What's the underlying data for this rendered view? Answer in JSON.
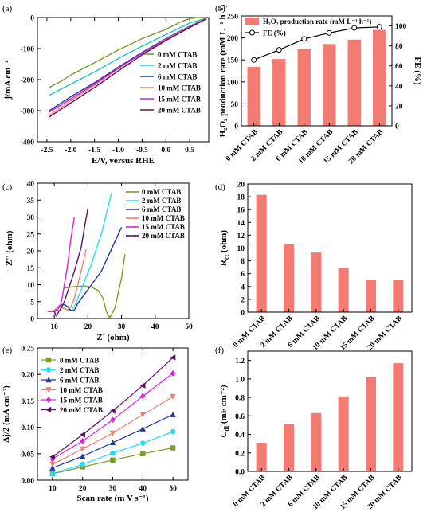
{
  "chart_data": [
    {
      "panel": "(a)",
      "type": "line",
      "xlabel": "E/V, versus RHE",
      "ylabel": "j/mA cm⁻²",
      "xlim": [
        -2.7,
        0.9
      ],
      "ylim": [
        -400,
        0
      ],
      "xticks": [
        -2.5,
        -2.0,
        -1.5,
        -1.0,
        -0.5,
        0.0,
        0.5
      ],
      "xtick_labels": [
        "-2.5",
        "-2.0",
        "-1.5",
        "-1.0",
        "-0.5",
        "0.0",
        "0.5"
      ],
      "yticks": [
        -400,
        -300,
        -200,
        -100,
        0
      ],
      "ytick_labels": [
        "-400",
        "-300",
        "-200",
        "-100",
        "0"
      ],
      "legend_position": "right",
      "series": [
        {
          "name": "0 mM CTAB",
          "color": "#7c9c28",
          "x": [
            -2.45,
            -2.2,
            -2.0,
            -1.5,
            -1.0,
            -0.5,
            0.0,
            0.3,
            0.5,
            0.7,
            0.85
          ],
          "y": [
            -225,
            -205,
            -185,
            -145,
            -105,
            -68,
            -38,
            -15,
            -3,
            0,
            0
          ]
        },
        {
          "name": "2 mM CTAB",
          "color": "#20c0c8",
          "x": [
            -2.45,
            -2.0,
            -1.5,
            -1.0,
            -0.5,
            0.0,
            0.5,
            0.85
          ],
          "y": [
            -250,
            -215,
            -175,
            -132,
            -92,
            -55,
            -18,
            -2
          ]
        },
        {
          "name": "6 mM CTAB",
          "color": "#1f3aa0",
          "x": [
            -2.45,
            -2.0,
            -1.5,
            -1.0,
            -0.5,
            0.0,
            0.5,
            0.85
          ],
          "y": [
            -300,
            -255,
            -210,
            -160,
            -112,
            -68,
            -28,
            -3
          ]
        },
        {
          "name": "10 mM CTAB",
          "color": "#f08070",
          "x": [
            -2.45,
            -2.0,
            -1.5,
            -1.0,
            -0.5,
            0.0,
            0.5,
            0.85
          ],
          "y": [
            -315,
            -268,
            -218,
            -165,
            -115,
            -70,
            -30,
            -3
          ]
        },
        {
          "name": "15 mM CTAB",
          "color": "#d020c8",
          "x": [
            -2.45,
            -2.0,
            -1.5,
            -1.0,
            -0.5,
            0.0,
            0.5,
            0.85
          ],
          "y": [
            -305,
            -262,
            -214,
            -163,
            -115,
            -72,
            -32,
            -4
          ]
        },
        {
          "name": "20 mM CTAB",
          "color": "#601060",
          "x": [
            -2.45,
            -2.0,
            -1.5,
            -1.0,
            -0.5,
            0.0,
            0.5,
            0.85
          ],
          "y": [
            -320,
            -275,
            -225,
            -172,
            -120,
            -74,
            -32,
            -4
          ]
        }
      ]
    },
    {
      "panel": "(b)",
      "type": "bar",
      "categories": [
        "0 mM CTAB",
        "2 mM CTAB",
        "6 mM CTAB",
        "10 mM CTAB",
        "15 mM CTAB",
        "20 mM CTAB"
      ],
      "ylabel_left": "H₂O₂ production rate (mM L⁻¹ h⁻¹)",
      "ylabel_right": "FE (%)",
      "ylim_left": [
        0,
        250
      ],
      "yticks_left": [
        0,
        50,
        100,
        150,
        200,
        250
      ],
      "ytick_labels_left": [
        "0",
        "50",
        "100",
        "150",
        "200",
        "250"
      ],
      "ylim_right": [
        0,
        110
      ],
      "yticks_right": [
        0,
        20,
        40,
        60,
        80,
        100
      ],
      "ytick_labels_right": [
        "0",
        "20",
        "40",
        "60",
        "80",
        "100"
      ],
      "legend_position": "top-left",
      "series": [
        {
          "name": "H₂O₂ production rate (mM L⁻¹ h⁻¹)",
          "kind": "bar",
          "color": "#f47b72",
          "values": [
            134,
            152,
            174,
            186,
            196,
            218
          ]
        },
        {
          "name": "FE (%)",
          "kind": "line",
          "color": "#000000",
          "values": [
            66,
            76,
            87,
            93,
            98,
            99
          ]
        }
      ]
    },
    {
      "panel": "(c)",
      "type": "line",
      "xlabel": "Z' (ohm)",
      "ylabel": "- Z'' (ohm)",
      "xlim": [
        5,
        50
      ],
      "ylim": [
        0,
        40
      ],
      "xticks": [
        10,
        20,
        30,
        40,
        50
      ],
      "xtick_labels": [
        "10",
        "20",
        "30",
        "40",
        "50"
      ],
      "yticks": [
        0,
        5,
        10,
        15,
        20,
        25,
        30,
        35,
        40
      ],
      "ytick_labels": [
        "0",
        "5",
        "10",
        "15",
        "20",
        "25",
        "30",
        "35",
        "40"
      ],
      "legend_position": "top-right",
      "series": [
        {
          "name": "0 mM CTAB",
          "color": "#7c9c28",
          "x": [
            13,
            15,
            17,
            19,
            21,
            23,
            24.5,
            25.5,
            26.5,
            28,
            30,
            31
          ],
          "y": [
            9,
            9.3,
            9.5,
            9.6,
            9.3,
            8.3,
            6,
            2,
            0.2,
            3,
            12,
            19
          ]
        },
        {
          "name": "2 mM CTAB",
          "color": "#20e0f0",
          "x": [
            10,
            11,
            12,
            13,
            14,
            15,
            16,
            17,
            19,
            21,
            24,
            27
          ],
          "y": [
            2,
            3.3,
            3.3,
            3,
            2.6,
            2.4,
            3.5,
            6,
            11,
            16,
            25,
            37
          ]
        },
        {
          "name": "6 mM CTAB",
          "color": "#1f3aa0",
          "x": [
            10,
            11,
            12,
            13,
            14,
            15,
            16,
            17,
            20,
            24,
            30
          ],
          "y": [
            2,
            3.4,
            4,
            4.1,
            3.5,
            2.3,
            2.5,
            4.5,
            8.5,
            14,
            27
          ]
        },
        {
          "name": "10 mM CTAB",
          "color": "#f08070",
          "x": [
            9,
            10,
            11,
            12,
            13,
            14,
            15,
            16,
            17,
            18,
            19.5
          ],
          "y": [
            2,
            2.5,
            3.2,
            3.3,
            2.9,
            2.5,
            3.5,
            6,
            10,
            14,
            20.5
          ]
        },
        {
          "name": "15 mM CTAB",
          "color": "#e020e0",
          "x": [
            8,
            9,
            10,
            11,
            12,
            12.5,
            13,
            14,
            15,
            16
          ],
          "y": [
            2,
            2.1,
            2,
            2.5,
            4.5,
            7,
            10,
            16,
            24,
            30
          ]
        },
        {
          "name": "20 mM CTAB",
          "color": "#601060",
          "x": [
            10,
            10.5,
            11,
            12,
            13,
            14,
            16,
            18,
            19,
            20
          ],
          "y": [
            2.2,
            0.8,
            1.5,
            3,
            5,
            8,
            14,
            21,
            27,
            32.5
          ]
        }
      ]
    },
    {
      "panel": "(d)",
      "type": "bar",
      "categories": [
        "0 mM CTAB",
        "2 mM CTAB",
        "6 mM CTAB",
        "10 mM CTAB",
        "15 mM CTAB",
        "20 mM CTAB"
      ],
      "ylabel": "R",
      "ylabel_sub": "ct",
      "ylabel_unit": " (ohm)",
      "ylim": [
        0,
        20
      ],
      "yticks": [
        0,
        2,
        4,
        6,
        8,
        10,
        12,
        14,
        16,
        18,
        20
      ],
      "ytick_labels": [
        "0",
        "2",
        "4",
        "6",
        "8",
        "10",
        "12",
        "14",
        "16",
        "18",
        "20"
      ],
      "color": "#f47b72",
      "values": [
        18.3,
        10.6,
        9.3,
        6.9,
        5.1,
        5.0
      ]
    },
    {
      "panel": "(e)",
      "type": "line",
      "xlabel": "Scan rate (m V s⁻¹)",
      "ylabel": "Δj/2 (mA cm⁻²)",
      "xlim": [
        5,
        55
      ],
      "ylim": [
        0,
        0.25
      ],
      "xticks": [
        10,
        20,
        30,
        40,
        50
      ],
      "xtick_labels": [
        "10",
        "20",
        "30",
        "40",
        "50"
      ],
      "yticks": [
        0,
        0.05,
        0.1,
        0.15,
        0.2,
        0.25
      ],
      "ytick_labels": [
        "0.00",
        "0.05",
        "0.10",
        "0.15",
        "0.20",
        "0.25"
      ],
      "legend_position": "top-left",
      "series": [
        {
          "name": "0 mM CTAB",
          "color": "#7c9c28",
          "marker": "square",
          "x": [
            10,
            20,
            30,
            40,
            50
          ],
          "y": [
            0.012,
            0.025,
            0.038,
            0.05,
            0.061
          ]
        },
        {
          "name": "2 mM CTAB",
          "color": "#20e0f0",
          "marker": "circle",
          "x": [
            10,
            20,
            30,
            40,
            50
          ],
          "y": [
            0.012,
            0.03,
            0.051,
            0.07,
            0.092
          ]
        },
        {
          "name": "6 mM CTAB",
          "color": "#1f3aa0",
          "marker": "triangle-up",
          "x": [
            10,
            20,
            30,
            40,
            50
          ],
          "y": [
            0.023,
            0.045,
            0.071,
            0.097,
            0.124
          ]
        },
        {
          "name": "10 mM CTAB",
          "color": "#f08070",
          "marker": "triangle-down",
          "x": [
            10,
            20,
            30,
            40,
            50
          ],
          "y": [
            0.03,
            0.059,
            0.089,
            0.124,
            0.158
          ]
        },
        {
          "name": "15 mM CTAB",
          "color": "#e020e0",
          "marker": "diamond",
          "x": [
            10,
            20,
            30,
            40,
            50
          ],
          "y": [
            0.04,
            0.074,
            0.114,
            0.159,
            0.202
          ]
        },
        {
          "name": "20 mM CTAB",
          "color": "#601060",
          "marker": "triangle-left",
          "x": [
            10,
            20,
            30,
            40,
            50
          ],
          "y": [
            0.044,
            0.086,
            0.131,
            0.179,
            0.232
          ]
        }
      ]
    },
    {
      "panel": "(f)",
      "type": "bar",
      "categories": [
        "0 mM CTAB",
        "2 mM CTAB",
        "6 mM CTAB",
        "10 mM CTAB",
        "15 mM CTAB",
        "20 mM CTAB"
      ],
      "ylabel": "C",
      "ylabel_sub": "dl",
      "ylabel_unit": " (mF cm⁻²)",
      "ylim": [
        0,
        1.3
      ],
      "yticks": [
        0,
        0.2,
        0.4,
        0.6,
        0.8,
        1.0,
        1.2
      ],
      "ytick_labels": [
        "0.0",
        "0.2",
        "0.4",
        "0.6",
        "0.8",
        "1.0",
        "1.2"
      ],
      "color": "#f47b72",
      "values": [
        0.31,
        0.51,
        0.63,
        0.81,
        1.02,
        1.17
      ]
    }
  ]
}
